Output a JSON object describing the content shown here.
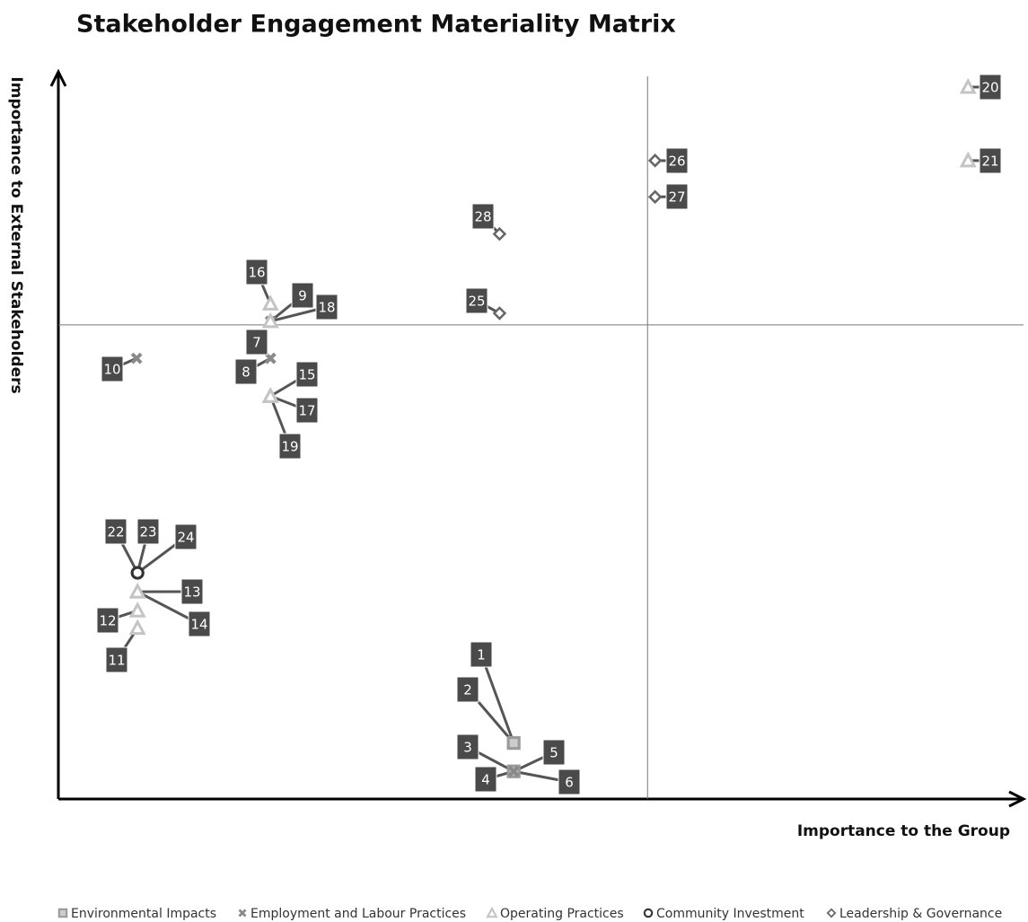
{
  "chart_data": {
    "type": "scatter",
    "title": "Stakeholder Engagement Materiality Matrix",
    "x_label": "Importance to the Group",
    "y_label": "Importance to External Stakeholders",
    "xlim": [
      0,
      10
    ],
    "ylim": [
      0,
      10
    ],
    "quadrant_lines": {
      "x": 6.25,
      "y": 6.52
    },
    "series": [
      {
        "name": "Environmental Impacts",
        "color": "#9a9a9a",
        "marker": "square",
        "x": [
          4.83,
          4.83,
          4.83,
          4.83
        ],
        "values": [
          0.77,
          0.77,
          0.38,
          0.38
        ],
        "labels": [
          "1",
          "2",
          "3",
          "4"
        ]
      },
      {
        "name": "Employment and Labour Practices",
        "color": "#8a8a8a",
        "marker": "x",
        "x": [
          4.83,
          4.83,
          2.25,
          2.25,
          2.25,
          0.83
        ],
        "values": [
          0.38,
          0.38,
          6.06,
          6.06,
          6.57,
          6.06
        ],
        "labels": [
          "5",
          "6",
          "7",
          "8",
          "9",
          "10"
        ]
      },
      {
        "name": "Operating Practices",
        "color": "#c4c4c4",
        "marker": "triangle",
        "x": [
          0.84,
          0.84,
          0.84,
          0.84,
          2.25,
          2.25,
          2.25,
          2.25,
          2.25,
          9.65,
          9.65
        ],
        "values": [
          2.35,
          2.59,
          2.85,
          2.85,
          5.54,
          6.81,
          5.54,
          6.57,
          5.54,
          9.79,
          8.78
        ],
        "labels": [
          "11",
          "12",
          "13",
          "14",
          "15",
          "16",
          "17",
          "18",
          "19",
          "20",
          "21"
        ]
      },
      {
        "name": "Community Investment",
        "color": "#333333",
        "marker": "circle",
        "x": [
          0.84,
          0.84,
          0.84
        ],
        "values": [
          3.11,
          3.11,
          3.11
        ],
        "labels": [
          "22",
          "23",
          "24"
        ]
      },
      {
        "name": "Leadership & Governance",
        "color": "#666666",
        "marker": "diamond",
        "x": [
          4.68,
          6.33,
          6.33,
          4.68
        ],
        "values": [
          6.68,
          8.78,
          8.28,
          7.77
        ],
        "labels": [
          "25",
          "26",
          "27",
          "28"
        ]
      }
    ]
  }
}
